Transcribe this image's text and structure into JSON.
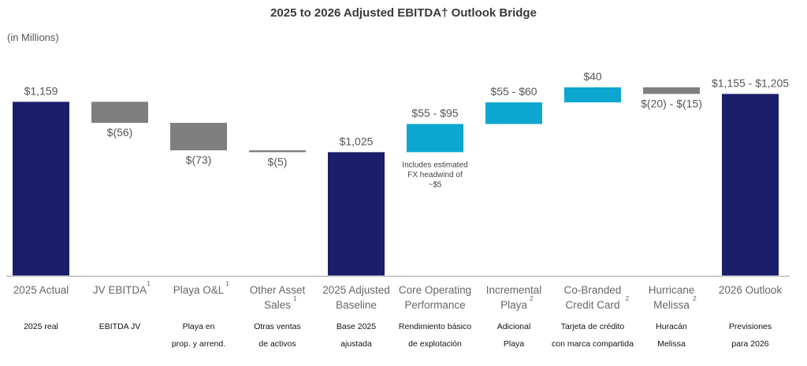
{
  "chart_data": {
    "type": "bar",
    "subtype": "waterfall",
    "title": "2025 to 2026 Adjusted EBITDA† Outlook Bridge",
    "unit_label": "(in Millions)",
    "ylim": [
      697,
      1210
    ],
    "grid": false,
    "colors": {
      "total": "#1b1f6b",
      "decrease": "#7f7f7f",
      "increase": "#0ca6d0"
    },
    "steps": [
      {
        "category": "2025 Actual",
        "sup": "",
        "es": [
          "2025 real"
        ],
        "kind": "total",
        "low": 1159,
        "high": 1159,
        "label": "$1,159"
      },
      {
        "category": "JV EBITDA",
        "sup": "1",
        "es": [
          "EBITDA JV"
        ],
        "kind": "decrease",
        "low": -56,
        "high": -56,
        "label": "$(56)"
      },
      {
        "category": "Playa O&L",
        "sup": "1",
        "es": [
          "Playa en",
          "prop. y arrend."
        ],
        "kind": "decrease",
        "low": -73,
        "high": -73,
        "label": "$(73)"
      },
      {
        "category": "Other Asset|Sales",
        "sup": "1",
        "es": [
          "Otras ventas",
          "de activos"
        ],
        "kind": "decrease",
        "low": -5,
        "high": -5,
        "label": "$(5)"
      },
      {
        "category": "2025 Adjusted|Baseline",
        "sup": "",
        "es": [
          "Base 2025",
          "ajustada"
        ],
        "kind": "total",
        "low": 1025,
        "high": 1025,
        "label": "$1,025"
      },
      {
        "category": "Core Operating|Performance",
        "sup": "",
        "es": [
          "Rendimiento básico",
          "de explotación"
        ],
        "kind": "increase",
        "low": 55,
        "high": 95,
        "label": "$55 - $95",
        "note": [
          "Includes estimated",
          "FX headwind of",
          "~$5"
        ]
      },
      {
        "category": "Incremental|Playa",
        "sup": "2",
        "es": [
          "Adicional",
          "Playa"
        ],
        "kind": "increase",
        "low": 55,
        "high": 60,
        "label": "$55 - $60"
      },
      {
        "category": "Co-Branded|Credit Card",
        "sup": "2",
        "es": [
          "Tarjeta de crédito",
          "con marca compartida"
        ],
        "kind": "increase",
        "low": 40,
        "high": 40,
        "label": "$40"
      },
      {
        "category": "Hurricane|Melissa",
        "sup": "2",
        "es": [
          "Huracán",
          "Melissa"
        ],
        "kind": "decrease",
        "low": -20,
        "high": -15,
        "label": "$(20) - $(15)"
      },
      {
        "category": "2026 Outlook",
        "sup": "",
        "es": [
          "Previsiones",
          "para 2026"
        ],
        "kind": "total",
        "low": 1155,
        "high": 1205,
        "label": "$1,155 - $1,205"
      }
    ]
  }
}
